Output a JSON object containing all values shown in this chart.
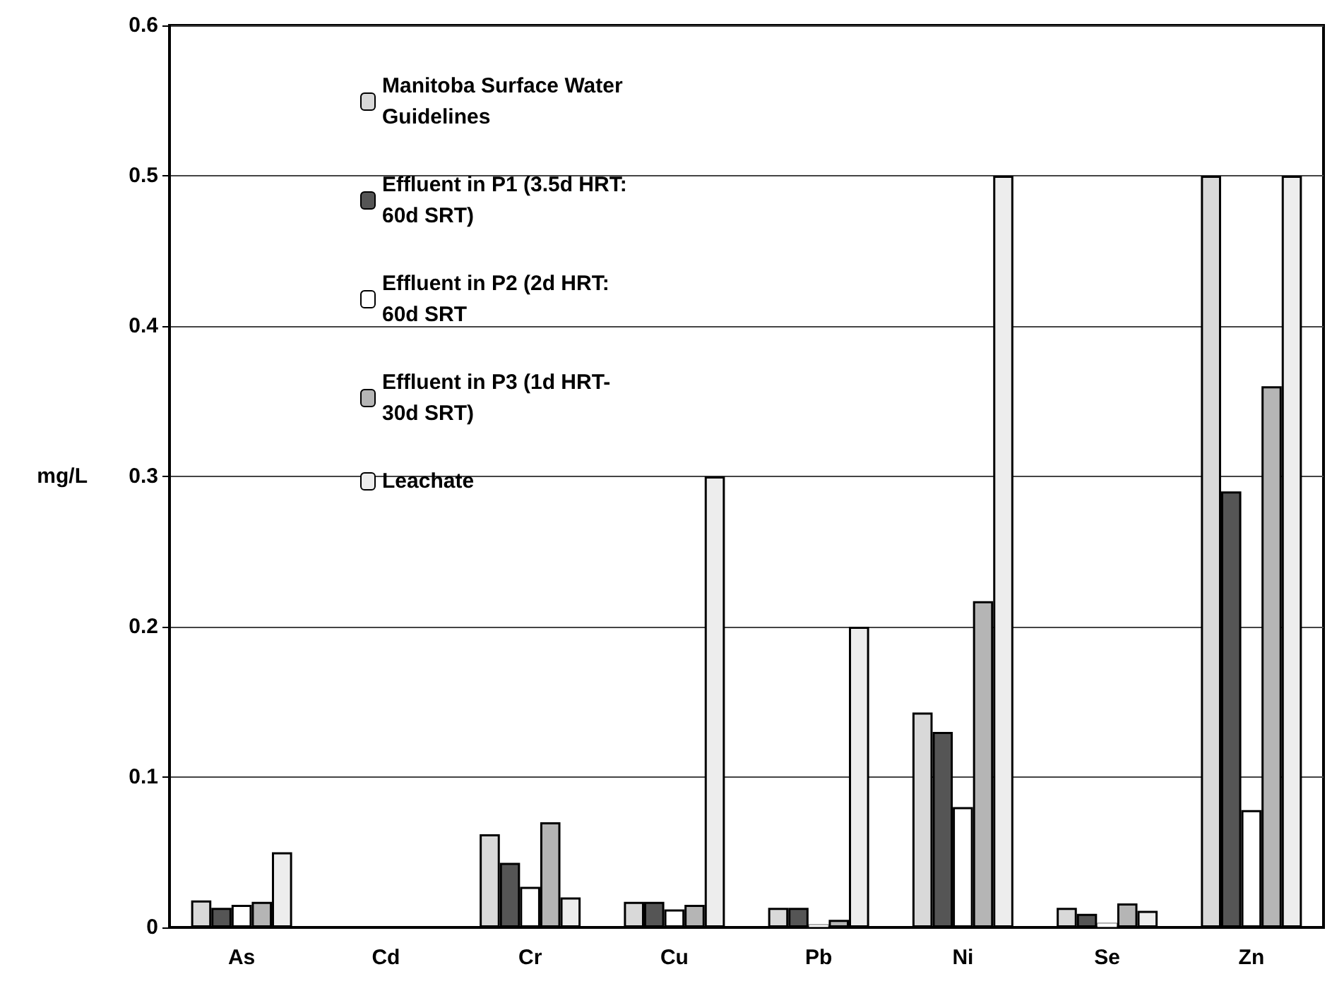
{
  "chart_data": {
    "type": "bar",
    "ylabel": "mg/L",
    "categories": [
      "As",
      "Cd",
      "Cr",
      "Cu",
      "Pb",
      "Ni",
      "Se",
      "Zn"
    ],
    "series": [
      {
        "name": "Manitoba Surface Water Guidelines",
        "color": "#d9d9d9",
        "values": [
          0.018,
          0,
          0.062,
          0.017,
          0.013,
          0.143,
          0.013,
          0.5
        ]
      },
      {
        "name": "Effluent in P1 (3.5d HRT: 60d SRT)",
        "color": "#555555",
        "values": [
          0.013,
          0,
          0.043,
          0.017,
          0.013,
          0.13,
          0.009,
          0.29
        ]
      },
      {
        "name": "Effluent in P2 (2d HRT: 60d SRT",
        "color": "#ffffff",
        "values": [
          0.015,
          0,
          0.027,
          0.012,
          0.002,
          0.08,
          0.003,
          0.078
        ]
      },
      {
        "name": "Effluent in P3 (1d HRT- 30d SRT)",
        "color": "#b5b5b5",
        "values": [
          0.017,
          0,
          0.07,
          0.015,
          0.005,
          0.217,
          0.016,
          0.36
        ]
      },
      {
        "name": "Leachate",
        "color": "#ededed",
        "values": [
          0.05,
          0,
          0.02,
          0.3,
          0.2,
          0.5,
          0.011,
          0.5
        ]
      }
    ],
    "ylim": [
      0,
      0.6
    ],
    "yticks": [
      0,
      0.1,
      0.2,
      0.3,
      0.4,
      0.5,
      0.6
    ],
    "grid": "y",
    "legend": "top left"
  }
}
